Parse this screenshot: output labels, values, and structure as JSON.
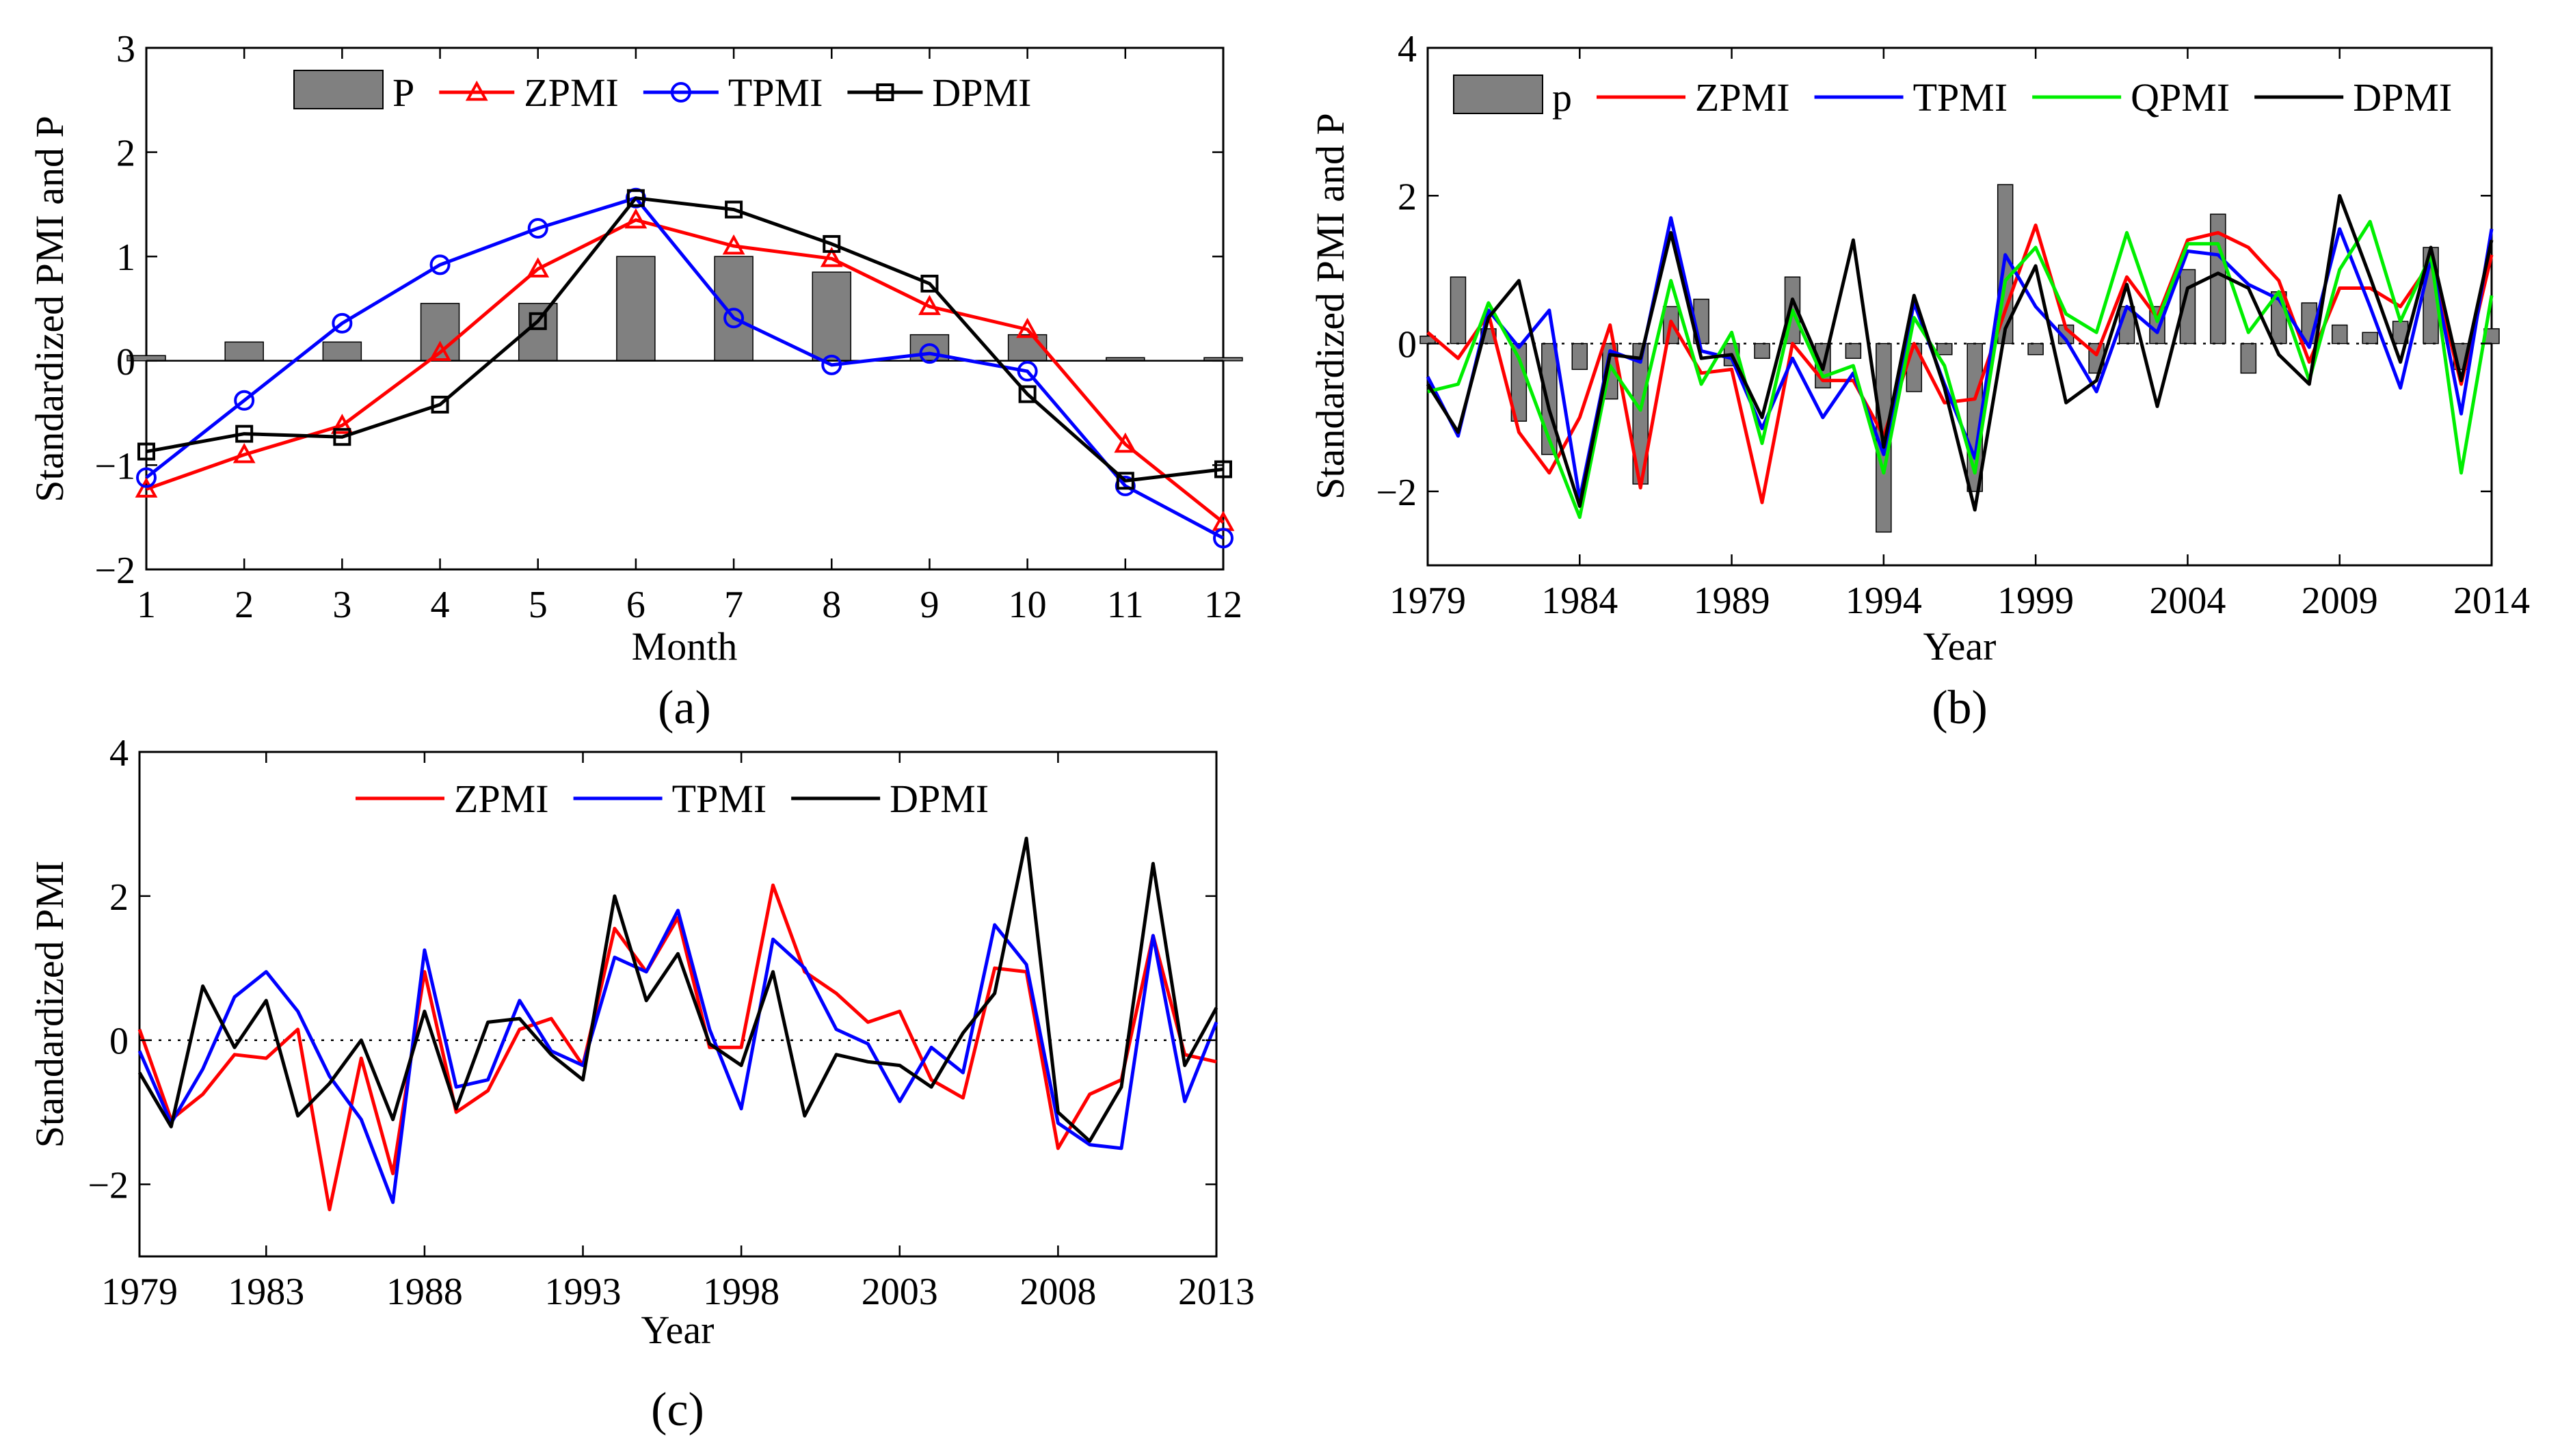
{
  "chart_data": [
    {
      "id": "a",
      "type": "bar+line",
      "caption": "(a)",
      "xlabel": "Month",
      "ylabel": "Standardized PMI and P",
      "xlim": [
        1,
        12
      ],
      "ylim": [
        -2,
        3
      ],
      "xticks": [
        "1",
        "2",
        "3",
        "4",
        "5",
        "6",
        "7",
        "8",
        "9",
        "10",
        "11",
        "12"
      ],
      "yticks": [
        "−2",
        "−1",
        "0",
        "1",
        "2",
        "3"
      ],
      "x": [
        1,
        2,
        3,
        4,
        5,
        6,
        7,
        8,
        9,
        10,
        11,
        12
      ],
      "bars": {
        "name": "P",
        "color": "#808080",
        "values": [
          0.05,
          0.18,
          0.18,
          0.55,
          0.55,
          1.0,
          1.0,
          0.85,
          0.25,
          0.25,
          0.03,
          0.03
        ]
      },
      "series": [
        {
          "name": "ZPMI",
          "color": "#ff0000",
          "marker": "triangle",
          "values": [
            -1.23,
            -0.9,
            -0.62,
            0.08,
            0.88,
            1.35,
            1.1,
            0.98,
            0.52,
            0.3,
            -0.8,
            -1.55
          ]
        },
        {
          "name": "TPMI",
          "color": "#0000ff",
          "marker": "circle",
          "values": [
            -1.12,
            -0.38,
            0.36,
            0.92,
            1.27,
            1.56,
            0.41,
            -0.04,
            0.07,
            -0.1,
            -1.2,
            -1.7
          ]
        },
        {
          "name": "DPMI",
          "color": "#000000",
          "marker": "square",
          "values": [
            -0.87,
            -0.7,
            -0.73,
            -0.42,
            0.38,
            1.56,
            1.45,
            1.12,
            0.74,
            -0.32,
            -1.15,
            -1.04
          ]
        }
      ],
      "legend": [
        "P",
        "ZPMI",
        "TPMI",
        "DPMI"
      ]
    },
    {
      "id": "b",
      "type": "bar+line",
      "caption": "(b)",
      "xlabel": "Year",
      "ylabel": "Standardized PMI and P",
      "xlim": [
        1979,
        2014
      ],
      "ylim": [
        -3,
        4
      ],
      "xticks": [
        "1979",
        "1984",
        "1989",
        "1994",
        "1999",
        "2004",
        "2009",
        "2014"
      ],
      "yticks": [
        "−2",
        "0",
        "2",
        "4"
      ],
      "x": [
        1979,
        1980,
        1981,
        1982,
        1983,
        1984,
        1985,
        1986,
        1987,
        1988,
        1989,
        1990,
        1991,
        1992,
        1993,
        1994,
        1995,
        1996,
        1997,
        1998,
        1999,
        2000,
        2001,
        2002,
        2003,
        2004,
        2005,
        2006,
        2007,
        2008,
        2009,
        2010,
        2011,
        2012,
        2013,
        2014
      ],
      "bars": {
        "name": "p",
        "color": "#808080",
        "values": [
          0.1,
          0.9,
          0.2,
          -1.05,
          -1.5,
          -0.35,
          -0.75,
          -1.9,
          0.5,
          0.6,
          -0.3,
          -0.2,
          0.9,
          -0.6,
          -0.2,
          -2.55,
          -0.65,
          -0.15,
          -2.0,
          2.15,
          -0.15,
          0.25,
          -0.4,
          0.5,
          0.5,
          1.0,
          1.75,
          -0.4,
          0.7,
          0.55,
          0.25,
          0.15,
          0.3,
          1.3,
          -0.35,
          0.2
        ]
      },
      "series": [
        {
          "name": "ZPMI",
          "color": "#ff0000",
          "values": [
            0.15,
            -0.2,
            0.4,
            -1.2,
            -1.75,
            -1.0,
            0.25,
            -1.95,
            0.3,
            -0.4,
            -0.35,
            -2.15,
            0.0,
            -0.5,
            -0.5,
            -1.25,
            0.0,
            -0.8,
            -0.75,
            0.45,
            1.6,
            0.2,
            -0.15,
            0.9,
            0.35,
            1.4,
            1.5,
            1.3,
            0.85,
            -0.25,
            0.75,
            0.75,
            0.5,
            1.1,
            -0.55,
            1.2
          ]
        },
        {
          "name": "TPMI",
          "color": "#0000ff",
          "values": [
            -0.45,
            -1.25,
            0.45,
            -0.05,
            0.45,
            -2.1,
            -0.1,
            -0.25,
            1.7,
            -0.1,
            -0.2,
            -1.15,
            -0.2,
            -1.0,
            -0.4,
            -1.5,
            0.55,
            -0.55,
            -1.55,
            1.2,
            0.5,
            0.05,
            -0.65,
            0.5,
            0.15,
            1.25,
            1.2,
            0.8,
            0.6,
            -0.05,
            1.55,
            0.5,
            -0.6,
            1.15,
            -0.95,
            1.55
          ]
        },
        {
          "name": "QPMI",
          "color": "#00ee00",
          "values": [
            -0.65,
            -0.55,
            0.55,
            -0.2,
            -1.3,
            -2.35,
            -0.3,
            -0.9,
            0.85,
            -0.55,
            0.15,
            -1.35,
            0.45,
            -0.45,
            -0.3,
            -1.75,
            0.35,
            -0.3,
            -1.75,
            0.85,
            1.3,
            0.4,
            0.15,
            1.5,
            0.3,
            1.35,
            1.35,
            0.15,
            0.7,
            -0.5,
            1.0,
            1.65,
            0.3,
            1.2,
            -1.75,
            0.65
          ]
        },
        {
          "name": "DPMI",
          "color": "#000000",
          "values": [
            -0.55,
            -1.2,
            0.35,
            0.85,
            -0.9,
            -2.2,
            -0.15,
            -0.2,
            1.5,
            -0.2,
            -0.15,
            -1.0,
            0.6,
            -0.35,
            1.4,
            -1.4,
            0.65,
            -0.6,
            -2.25,
            0.2,
            1.05,
            -0.8,
            -0.5,
            0.8,
            -0.85,
            0.75,
            0.95,
            0.75,
            -0.15,
            -0.55,
            2.0,
            0.9,
            -0.25,
            1.3,
            -0.5,
            1.4
          ]
        }
      ],
      "legend": [
        "p",
        "ZPMI",
        "TPMI",
        "QPMI",
        "DPMI"
      ]
    },
    {
      "id": "c",
      "type": "line",
      "caption": "(c)",
      "xlabel": "Year",
      "ylabel": "Standardized PMI",
      "xlim": [
        1979,
        2013
      ],
      "ylim": [
        -3,
        4
      ],
      "xticks": [
        "1979",
        "1983",
        "1988",
        "1993",
        "1998",
        "2003",
        "2008",
        "2013"
      ],
      "xtick_values": [
        1979,
        1983,
        1988,
        1993,
        1998,
        2003,
        2008,
        2013
      ],
      "yticks": [
        "−2",
        "0",
        "2",
        "4"
      ],
      "x": [
        1979,
        1980,
        1981,
        1982,
        1983,
        1984,
        1985,
        1986,
        1987,
        1988,
        1989,
        1990,
        1991,
        1992,
        1993,
        1994,
        1995,
        1996,
        1997,
        1998,
        1999,
        2000,
        2001,
        2002,
        2003,
        2004,
        2005,
        2006,
        2007,
        2008,
        2009,
        2010,
        2011,
        2012,
        2013
      ],
      "series": [
        {
          "name": "ZPMI",
          "color": "#ff0000",
          "values": [
            0.15,
            -1.1,
            -0.75,
            -0.2,
            -0.25,
            0.15,
            -2.35,
            -0.25,
            -1.85,
            0.95,
            -1.0,
            -0.7,
            0.15,
            0.3,
            -0.35,
            1.55,
            0.95,
            1.7,
            -0.1,
            -0.1,
            2.15,
            0.95,
            0.65,
            0.25,
            0.4,
            -0.55,
            -0.8,
            1.0,
            0.95,
            -1.5,
            -0.75,
            -0.55,
            1.45,
            -0.2,
            -0.3
          ]
        },
        {
          "name": "TPMI",
          "color": "#0000ff",
          "values": [
            -0.15,
            -1.15,
            -0.4,
            0.6,
            0.95,
            0.4,
            -0.5,
            -1.1,
            -2.25,
            1.25,
            -0.65,
            -0.55,
            0.55,
            -0.15,
            -0.35,
            1.15,
            0.95,
            1.8,
            0.15,
            -0.95,
            1.4,
            1.0,
            0.15,
            -0.05,
            -0.85,
            -0.1,
            -0.45,
            1.6,
            1.05,
            -1.15,
            -1.45,
            -1.5,
            1.45,
            -0.85,
            0.25
          ]
        },
        {
          "name": "DPMI",
          "color": "#000000",
          "values": [
            -0.45,
            -1.2,
            0.75,
            -0.1,
            0.55,
            -1.05,
            -0.6,
            0.0,
            -1.1,
            0.4,
            -0.95,
            0.25,
            0.3,
            -0.2,
            -0.55,
            2.0,
            0.55,
            1.2,
            -0.05,
            -0.35,
            0.95,
            -1.05,
            -0.2,
            -0.3,
            -0.35,
            -0.65,
            0.1,
            0.65,
            2.8,
            -1.0,
            -1.4,
            -0.65,
            2.45,
            -0.35,
            0.45
          ]
        }
      ],
      "legend": [
        "ZPMI",
        "TPMI",
        "DPMI"
      ]
    }
  ]
}
